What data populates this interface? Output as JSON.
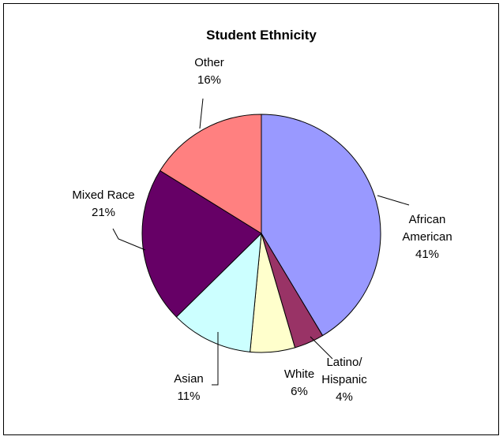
{
  "chart_data": {
    "type": "pie",
    "title": "Student Ethnicity",
    "slices": [
      {
        "label_lines": [
          "African",
          "American"
        ],
        "percent_text": "41%",
        "value": 41,
        "color": "#9999ff"
      },
      {
        "label_lines": [
          "Latino/",
          "Hispanic"
        ],
        "percent_text": "4%",
        "value": 4,
        "color": "#993366"
      },
      {
        "label_lines": [
          "White"
        ],
        "percent_text": "6%",
        "value": 6,
        "color": "#ffffcc"
      },
      {
        "label_lines": [
          "Asian"
        ],
        "percent_text": "11%",
        "value": 11,
        "color": "#ccffff"
      },
      {
        "label_lines": [
          "Mixed Race"
        ],
        "percent_text": "21%",
        "value": 21,
        "color": "#660066"
      },
      {
        "label_lines": [
          "Other"
        ],
        "percent_text": "16%",
        "value": 16,
        "color": "#ff8080"
      }
    ],
    "legend": "none",
    "start_direction": "top",
    "direction": "clockwise"
  }
}
